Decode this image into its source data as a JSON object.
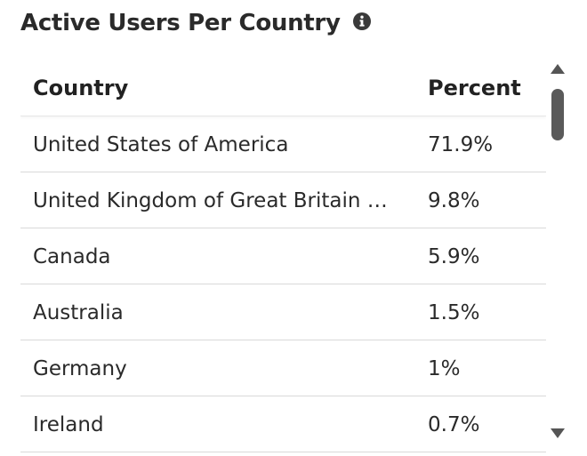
{
  "widget": {
    "title": "Active Users Per Country",
    "info_icon": "info-icon"
  },
  "table": {
    "columns": [
      "Country",
      "Percent"
    ],
    "rows": [
      {
        "country": "United States of America",
        "percent": "71.9%"
      },
      {
        "country": "United Kingdom of Great Britain and...",
        "percent": "9.8%"
      },
      {
        "country": "Canada",
        "percent": "5.9%"
      },
      {
        "country": "Australia",
        "percent": "1.5%"
      },
      {
        "country": "Germany",
        "percent": "1%"
      },
      {
        "country": "Ireland",
        "percent": "0.7%"
      }
    ]
  },
  "colors": {
    "text": "#2a2a2a",
    "divider": "#d9d9d9",
    "scrollbar": "#5a5a5a",
    "background": "#ffffff"
  }
}
